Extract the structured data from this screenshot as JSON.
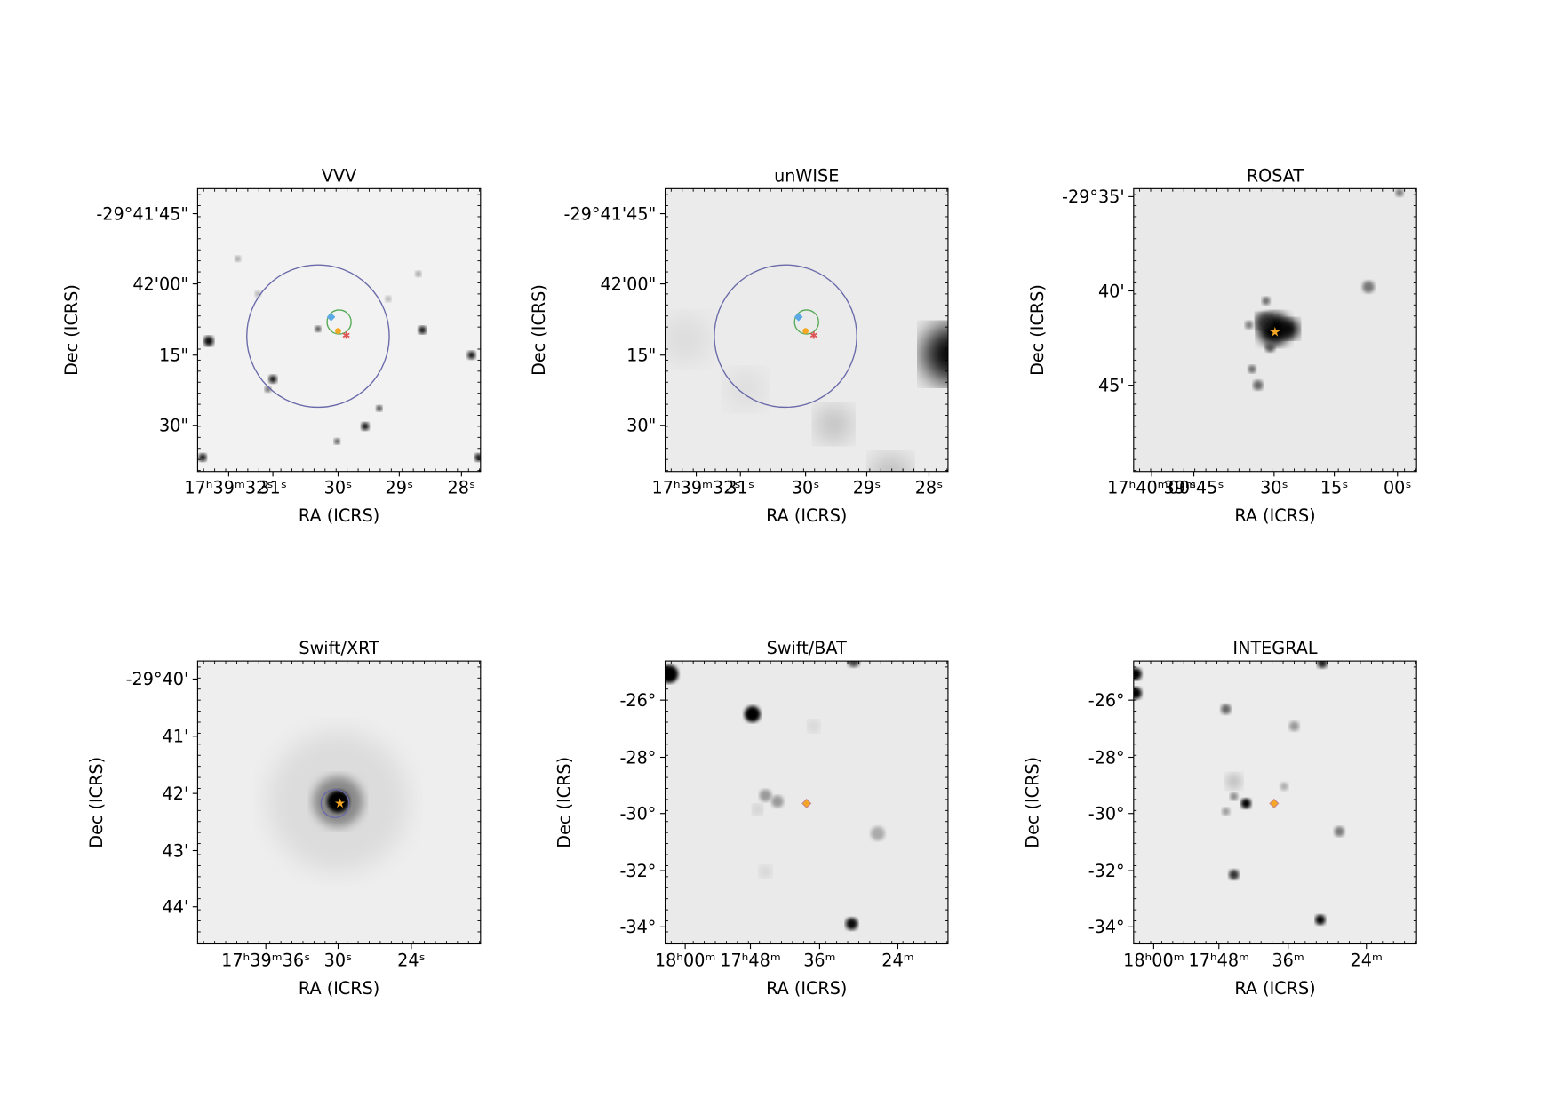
{
  "panels": [
    {
      "title": "VVV",
      "xlabel": "RA (ICRS)",
      "ylabel": "Dec (ICRS)",
      "xticks": [
        "17ʰ39ᵐ32ˢ",
        "31ˢ",
        "30ˢ",
        "29ˢ",
        "28ˢ"
      ],
      "yticks": [
        "-29°41'45\"",
        "42'00\"",
        "15\"",
        "30\""
      ]
    },
    {
      "title": "unWISE",
      "xlabel": "RA (ICRS)",
      "ylabel": "Dec (ICRS)",
      "xticks": [
        "17ʰ39ᵐ32ˢ",
        "31ˢ",
        "30ˢ",
        "29ˢ",
        "28ˢ"
      ],
      "yticks": [
        "-29°41'45\"",
        "42'00\"",
        "15\"",
        "30\""
      ]
    },
    {
      "title": "ROSAT",
      "xlabel": "RA (ICRS)",
      "ylabel": "Dec (ICRS)",
      "xticks": [
        "17ʰ40ᵐ00ˢ",
        "39ᵐ45ˢ",
        "30ˢ",
        "15ˢ",
        "00ˢ"
      ],
      "yticks": [
        "-29°35'",
        "40'",
        "45'"
      ]
    },
    {
      "title": "Swift/XRT",
      "xlabel": "RA (ICRS)",
      "ylabel": "Dec (ICRS)",
      "xticks": [
        "17ʰ39ᵐ36ˢ",
        "30ˢ",
        "24ˢ"
      ],
      "yticks": [
        "-29°40'",
        "41'",
        "42'",
        "43'",
        "44'"
      ]
    },
    {
      "title": "Swift/BAT",
      "xlabel": "RA (ICRS)",
      "ylabel": "Dec (ICRS)",
      "xticks": [
        "18ʰ00ᵐ",
        "17ʰ48ᵐ",
        "36ᵐ",
        "24ᵐ"
      ],
      "yticks": [
        "-26°",
        "-28°",
        "-30°",
        "-32°",
        "-34°"
      ]
    },
    {
      "title": "INTEGRAL",
      "xlabel": "RA (ICRS)",
      "ylabel": "Dec (ICRS)",
      "xticks": [
        "18ʰ00ᵐ",
        "17ʰ48ᵐ",
        "36ᵐ",
        "24ᵐ"
      ],
      "yticks": [
        "-26°",
        "-28°",
        "-30°",
        "-32°",
        "-34°"
      ]
    }
  ]
}
